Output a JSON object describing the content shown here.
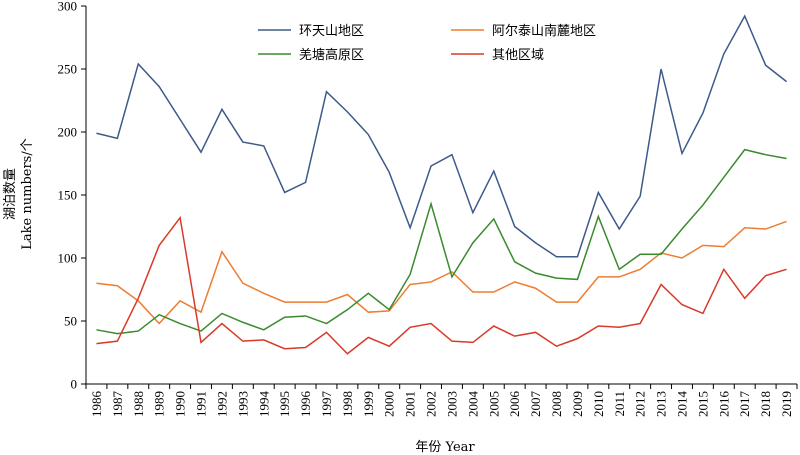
{
  "chart_data": {
    "type": "line",
    "xlabel": "年份 Year",
    "ylabel_cn": "湖泊数量",
    "ylabel_en": "Lake numbers/个",
    "ylim": [
      0,
      300
    ],
    "yticks": [
      0,
      50,
      100,
      150,
      200,
      250,
      300
    ],
    "legend_position": "top-center",
    "x": [
      "1986",
      "1987",
      "1988",
      "1989",
      "1990",
      "1991",
      "1992",
      "1993",
      "1994",
      "1995",
      "1996",
      "1997",
      "1998",
      "1999",
      "2000",
      "2001",
      "2002",
      "2003",
      "2004",
      "2005",
      "2006",
      "2007",
      "2008",
      "2009",
      "2010",
      "2011",
      "2012",
      "2013",
      "2014",
      "2015",
      "2016",
      "2017",
      "2018",
      "2019"
    ],
    "series": [
      {
        "name": "环天山地区",
        "color": "#3d5a8a",
        "values": [
          199,
          195,
          254,
          236,
          210,
          184,
          218,
          192,
          189,
          152,
          160,
          232,
          216,
          198,
          168,
          124,
          173,
          182,
          136,
          169,
          125,
          112,
          101,
          101,
          152,
          123,
          149,
          250,
          183,
          215,
          262,
          292,
          253,
          240
        ]
      },
      {
        "name": "阿尔泰山南麓地区",
        "color": "#ed7d31",
        "values": [
          80,
          78,
          66,
          48,
          66,
          57,
          105,
          80,
          72,
          65,
          65,
          65,
          71,
          57,
          58,
          79,
          81,
          89,
          73,
          73,
          81,
          76,
          65,
          65,
          85,
          85,
          91,
          104,
          100,
          110,
          109,
          124,
          123,
          129
        ]
      },
      {
        "name": "羌塘高原区",
        "color": "#3a8a2e",
        "values": [
          43,
          40,
          42,
          55,
          48,
          42,
          56,
          49,
          43,
          53,
          54,
          48,
          59,
          72,
          59,
          87,
          143,
          85,
          112,
          131,
          97,
          88,
          84,
          83,
          133,
          91,
          103,
          103,
          123,
          142,
          164,
          186,
          182,
          179
        ]
      },
      {
        "name": "其他区域",
        "color": "#d83a28",
        "values": [
          32,
          34,
          68,
          110,
          132,
          33,
          48,
          34,
          35,
          28,
          29,
          41,
          24,
          37,
          30,
          45,
          48,
          34,
          33,
          46,
          38,
          41,
          30,
          36,
          46,
          45,
          48,
          79,
          63,
          56,
          91,
          68,
          86,
          91
        ]
      }
    ]
  }
}
